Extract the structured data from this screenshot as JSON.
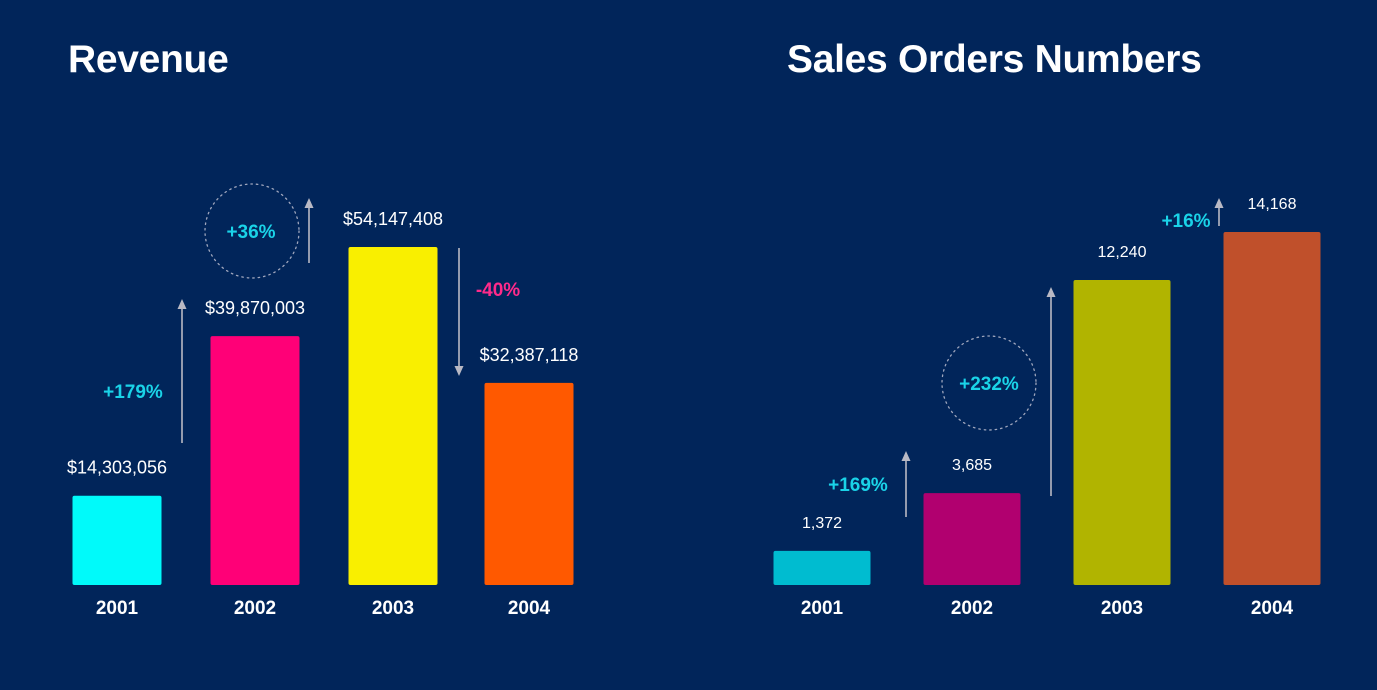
{
  "chart_data": [
    {
      "type": "bar",
      "title": "Revenue",
      "categories": [
        "2001",
        "2002",
        "2003",
        "2004"
      ],
      "values": [
        14303056,
        39870003,
        54147408,
        32387118
      ],
      "value_labels": [
        "$14,303,056",
        "$39,870,003",
        "$54,147,408",
        "$32,387,118"
      ],
      "colors": [
        "#00fafa",
        "#ff0077",
        "#f9ef00",
        "#ff5900"
      ],
      "annotations": [
        {
          "text": "+179%",
          "from": "2001",
          "to": "2002",
          "direction": "up",
          "color": "#1ad3e8",
          "circled": false
        },
        {
          "text": "+36%",
          "from": "2002",
          "to": "2003",
          "direction": "up",
          "color": "#1ad3e8",
          "circled": true
        },
        {
          "text": "-40%",
          "from": "2003",
          "to": "2004",
          "direction": "down",
          "color": "#ff2a8a",
          "circled": false
        }
      ],
      "grid": false,
      "xlabel": "",
      "ylabel": ""
    },
    {
      "type": "bar",
      "title": "Sales Orders Numbers",
      "categories": [
        "2001",
        "2002",
        "2003",
        "2004"
      ],
      "values": [
        1372,
        3685,
        12240,
        14168
      ],
      "value_labels": [
        "1,372",
        "3,685",
        "12,240",
        "14,168"
      ],
      "colors": [
        "#00bcd0",
        "#b1006f",
        "#b1b400",
        "#c0502b"
      ],
      "annotations": [
        {
          "text": "+169%",
          "from": "2001",
          "to": "2002",
          "direction": "up",
          "color": "#1ad3e8",
          "circled": false
        },
        {
          "text": "+232%",
          "from": "2002",
          "to": "2003",
          "direction": "up",
          "color": "#1ad3e8",
          "circled": true
        },
        {
          "text": "+16%",
          "from": "2003",
          "to": "2004",
          "direction": "up",
          "color": "#1ad3e8",
          "circled": false
        }
      ],
      "grid": false,
      "xlabel": "",
      "ylabel": ""
    }
  ]
}
